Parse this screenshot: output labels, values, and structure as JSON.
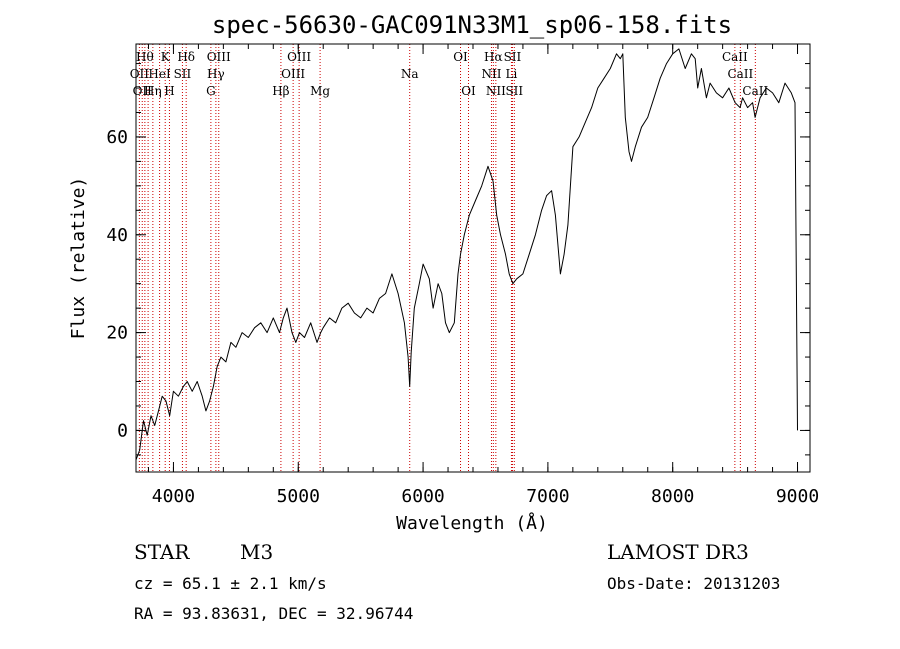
{
  "chart_data": {
    "type": "line",
    "title": "spec-56630-GAC091N33M1_sp06-158.fits",
    "xlabel": "Wavelength (Å)",
    "ylabel": "Flux (relative)",
    "xlim": [
      3700,
      9100
    ],
    "ylim": [
      -8.5,
      79
    ],
    "xticks": [
      4000,
      5000,
      6000,
      7000,
      8000,
      9000
    ],
    "yticks": [
      0,
      20,
      40,
      60
    ],
    "x_minor_step": 200,
    "y_minor_step": 5,
    "series": [
      {
        "name": "spectrum",
        "color": "#000000",
        "x": [
          3700,
          3730,
          3760,
          3790,
          3820,
          3850,
          3880,
          3910,
          3940,
          3970,
          4000,
          4040,
          4080,
          4110,
          4150,
          4190,
          4230,
          4260,
          4290,
          4320,
          4350,
          4380,
          4420,
          4460,
          4500,
          4550,
          4600,
          4650,
          4700,
          4750,
          4800,
          4850,
          4880,
          4910,
          4950,
          4980,
          5010,
          5050,
          5100,
          5150,
          5180,
          5200,
          5250,
          5300,
          5350,
          5400,
          5450,
          5500,
          5550,
          5600,
          5650,
          5700,
          5750,
          5800,
          5850,
          5880,
          5893,
          5905,
          5930,
          5970,
          6000,
          6050,
          6080,
          6120,
          6150,
          6180,
          6210,
          6250,
          6280,
          6300,
          6330,
          6370,
          6420,
          6470,
          6520,
          6560,
          6590,
          6620,
          6660,
          6690,
          6720,
          6750,
          6800,
          6850,
          6900,
          6950,
          6990,
          7030,
          7060,
          7100,
          7130,
          7160,
          7200,
          7250,
          7300,
          7350,
          7400,
          7450,
          7500,
          7550,
          7580,
          7600,
          7620,
          7650,
          7670,
          7700,
          7750,
          7800,
          7850,
          7900,
          7950,
          8000,
          8050,
          8100,
          8150,
          8180,
          8200,
          8230,
          8270,
          8300,
          8350,
          8400,
          8450,
          8500,
          8540,
          8560,
          8600,
          8640,
          8660,
          8700,
          8750,
          8800,
          8850,
          8900,
          8950,
          8980,
          9000
        ],
        "values": [
          -6,
          -4,
          2,
          -1,
          3,
          1,
          4,
          7,
          6,
          3,
          8,
          7,
          9,
          10,
          8,
          10,
          7,
          4,
          6,
          9,
          13,
          15,
          14,
          18,
          17,
          20,
          19,
          21,
          22,
          20,
          23,
          20,
          23,
          25,
          20,
          18,
          20,
          19,
          22,
          18,
          20,
          21,
          23,
          22,
          25,
          26,
          24,
          23,
          25,
          24,
          27,
          28,
          32,
          28,
          22,
          15,
          9,
          16,
          25,
          30,
          34,
          31,
          25,
          30,
          28,
          22,
          20,
          22,
          32,
          36,
          40,
          44,
          47,
          50,
          54,
          51,
          44,
          40,
          36,
          32,
          30,
          31,
          32,
          36,
          40,
          45,
          48,
          49,
          44,
          32,
          36,
          42,
          58,
          60,
          63,
          66,
          70,
          72,
          74,
          77,
          76,
          77,
          64,
          57,
          55,
          58,
          62,
          64,
          68,
          72,
          75,
          77,
          78,
          74,
          77,
          76,
          70,
          74,
          68,
          71,
          69,
          68,
          70,
          67,
          66,
          68,
          66,
          67,
          64,
          68,
          70,
          69,
          67,
          71,
          69,
          67,
          0
        ]
      }
    ],
    "line_markers": [
      {
        "wavelength": 3727,
        "label": "OII",
        "row": 2
      },
      {
        "wavelength": 3750,
        "label": "OII",
        "row": 3
      },
      {
        "wavelength": 3771,
        "label": "Hθ",
        "row": 1
      },
      {
        "wavelength": 3797,
        "label": "",
        "row": 1
      },
      {
        "wavelength": 3835,
        "label": "Hη",
        "row": 3
      },
      {
        "wavelength": 3889,
        "label": "HeI",
        "row": 2
      },
      {
        "wavelength": 3934,
        "label": "K",
        "row": 1
      },
      {
        "wavelength": 3968,
        "label": "H",
        "row": 3
      },
      {
        "wavelength": 4072,
        "label": "SII",
        "row": 2
      },
      {
        "wavelength": 4102,
        "label": "Hδ",
        "row": 1
      },
      {
        "wavelength": 4300,
        "label": "G",
        "row": 3
      },
      {
        "wavelength": 4340,
        "label": "Hγ",
        "row": 2
      },
      {
        "wavelength": 4363,
        "label": "OIII",
        "row": 1
      },
      {
        "wavelength": 4861,
        "label": "Hβ",
        "row": 3
      },
      {
        "wavelength": 4959,
        "label": "OIII",
        "row": 2
      },
      {
        "wavelength": 5007,
        "label": "OIII",
        "row": 1
      },
      {
        "wavelength": 5175,
        "label": "Mg",
        "row": 3
      },
      {
        "wavelength": 5893,
        "label": "Na",
        "row": 2
      },
      {
        "wavelength": 6300,
        "label": "OI",
        "row": 1
      },
      {
        "wavelength": 6364,
        "label": "OI",
        "row": 3
      },
      {
        "wavelength": 6548,
        "label": "NII",
        "row": 2
      },
      {
        "wavelength": 6563,
        "label": "Hα",
        "row": 1
      },
      {
        "wavelength": 6583,
        "label": "NII",
        "row": 3
      },
      {
        "wavelength": 6708,
        "label": "Li",
        "row": 2
      },
      {
        "wavelength": 6716,
        "label": "SII",
        "row": 1
      },
      {
        "wavelength": 6731,
        "label": "SII",
        "row": 3
      },
      {
        "wavelength": 8498,
        "label": "CaII",
        "row": 1
      },
      {
        "wavelength": 8542,
        "label": "CaII",
        "row": 2
      },
      {
        "wavelength": 8662,
        "label": "CaII",
        "row": 3
      }
    ],
    "marker_color": "#cc0000"
  },
  "info": {
    "object_class": "STAR",
    "subclass": "M3",
    "survey": "LAMOST DR3",
    "redshift_line": "cz = 65.1 ± 2.1 km/s",
    "obs_date_line": "Obs-Date: 20131203",
    "coords_line": "RA =  93.83631, DEC =  32.96744"
  }
}
